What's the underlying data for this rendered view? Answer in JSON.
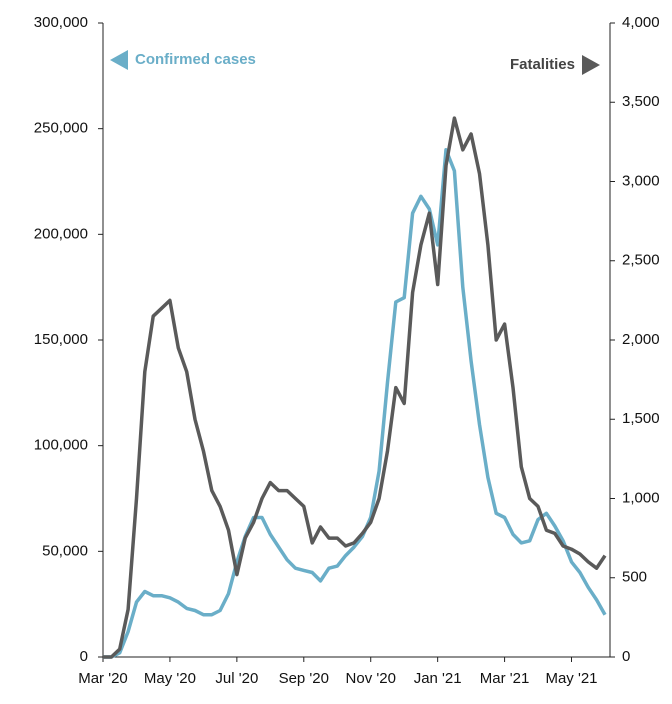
{
  "chart_data": {
    "type": "line",
    "categories": [
      "Mar '20",
      null,
      null,
      null,
      null,
      null,
      null,
      null,
      "May '20",
      null,
      null,
      null,
      null,
      null,
      null,
      null,
      "Jul '20",
      null,
      null,
      null,
      null,
      null,
      null,
      null,
      "Sep '20",
      null,
      null,
      null,
      null,
      null,
      null,
      null,
      "Nov '20",
      null,
      null,
      null,
      null,
      null,
      null,
      null,
      "Jan '21",
      null,
      null,
      null,
      null,
      null,
      null,
      null,
      "Mar '21",
      null,
      null,
      null,
      null,
      null,
      null,
      null,
      "May '21",
      null,
      null,
      null,
      null
    ],
    "series": [
      {
        "name": "Confirmed cases",
        "color": "#6aaec8",
        "values": [
          0,
          0,
          2000,
          12000,
          26000,
          31000,
          29000,
          29000,
          28000,
          26000,
          23000,
          22000,
          20000,
          20000,
          22000,
          30000,
          45000,
          57000,
          66000,
          66000,
          58000,
          52000,
          46000,
          42000,
          41000,
          40000,
          36000,
          42000,
          43000,
          48000,
          52000,
          57000,
          66000,
          88000,
          130000,
          168000,
          170000,
          210000,
          218000,
          212000,
          195000,
          240000,
          230000,
          175000,
          140000,
          110000,
          85000,
          68000,
          66000,
          58000,
          54000,
          55000,
          65000,
          68000,
          62000,
          55000,
          45000,
          40000,
          33000,
          27000,
          20000
        ]
      },
      {
        "name": "Fatalities",
        "color": "#5a5a5a",
        "axis": "y2",
        "values": [
          0,
          0,
          50,
          300,
          1000,
          1800,
          2150,
          2200,
          2250,
          1950,
          1800,
          1500,
          1300,
          1050,
          950,
          800,
          520,
          750,
          850,
          1000,
          1100,
          1050,
          1050,
          1000,
          950,
          720,
          820,
          750,
          750,
          700,
          720,
          780,
          850,
          1000,
          1300,
          1700,
          1600,
          2300,
          2600,
          2800,
          2350,
          3100,
          3400,
          3200,
          3300,
          3050,
          2600,
          2000,
          2100,
          1700,
          1200,
          1000,
          950,
          800,
          780,
          700,
          680,
          650,
          600,
          560,
          640
        ]
      }
    ],
    "ylim": [
      0,
      300000
    ],
    "yticks": [
      0,
      {
        "value": 50000,
        "label": "50,000"
      },
      {
        "value": 100000,
        "label": "100,000"
      },
      {
        "value": 150000,
        "label": "150,000"
      },
      {
        "value": 200000,
        "label": "200,000"
      },
      {
        "value": 250000,
        "label": "250,000"
      },
      {
        "value": 300000,
        "label": "300,000"
      }
    ],
    "y2lim": [
      0,
      4000
    ],
    "y2ticks": [
      0,
      500,
      {
        "value": 1000,
        "label": "1,000"
      },
      {
        "value": 1500,
        "label": "1,500"
      },
      {
        "value": 2000,
        "label": "2,000"
      },
      {
        "value": 2500,
        "label": "2,500"
      },
      {
        "value": 3000,
        "label": "3,000"
      },
      {
        "value": 3500,
        "label": "3,500"
      },
      {
        "value": 4000,
        "label": "4,000"
      }
    ]
  }
}
